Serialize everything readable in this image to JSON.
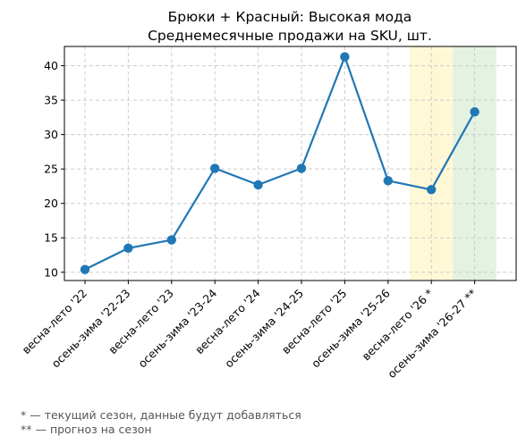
{
  "chart_data": {
    "type": "line",
    "title": [
      "Брюки + Красный: Высокая мода",
      "Среднемесячные продажи на SKU, шт."
    ],
    "xlabel": "",
    "ylabel": "",
    "categories": [
      "весна-лето '22",
      "осень-зима '22-23",
      "весна-лето '23",
      "осень-зима '23-24",
      "весна-лето '24",
      "осень-зима '24-25",
      "весна-лето '25",
      "осень-зима '25-26",
      "весна-лето '26 *",
      "осень-зима '26-27 **"
    ],
    "series": [
      {
        "values": [
          10.4,
          13.5,
          14.7,
          25.1,
          22.7,
          25.1,
          41.3,
          23.3,
          22.0,
          33.3
        ]
      }
    ],
    "yticks": [
      10,
      15,
      20,
      25,
      30,
      35,
      40
    ],
    "ylim": [
      8.8,
      42.8
    ],
    "grid": true,
    "highlights": [
      {
        "category": "весна-лето '26 *",
        "meaning": "current",
        "color": "#fff8d6"
      },
      {
        "category": "осень-зима '26-27 **",
        "meaning": "forecast",
        "color": "#e4f2e1"
      }
    ],
    "line_color": "#1f77b4"
  },
  "notes": [
    "* — текущий сезон, данные будут добавляться",
    "** — прогноз на сезон"
  ]
}
